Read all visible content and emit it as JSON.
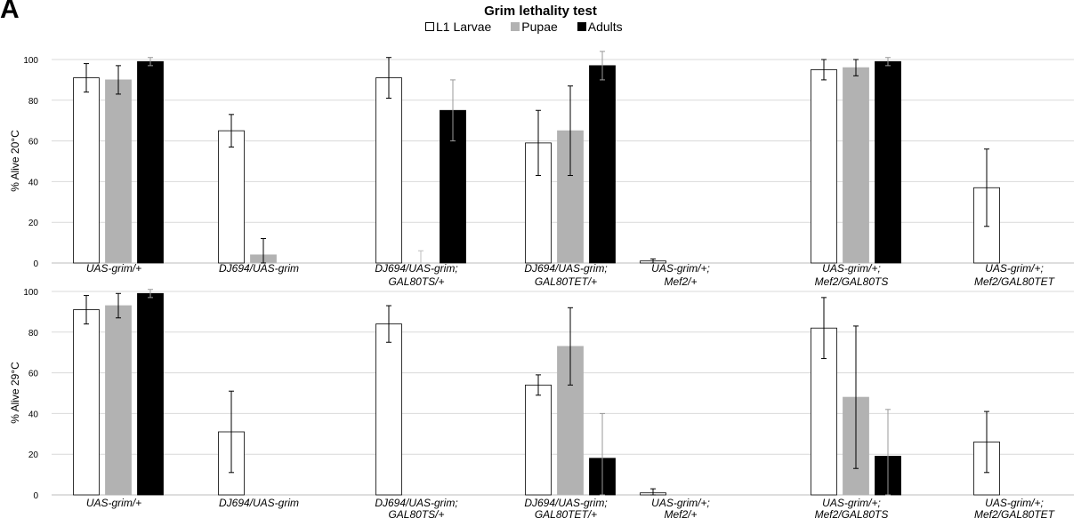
{
  "panel_label": "A",
  "chart_data": [
    {
      "type": "bar",
      "title": "Grim lethality test",
      "ylabel": "% Alive 20°C",
      "ylim": [
        0,
        100
      ],
      "yticks": [
        0,
        20,
        40,
        60,
        80,
        100
      ],
      "grid": true,
      "legend_position": "top-center",
      "categories": [
        [
          "UAS-grim/+"
        ],
        [
          "DJ694/UAS-grim"
        ],
        [
          "DJ694/UAS-grim;",
          "GAL80TS/+"
        ],
        [
          "DJ694/UAS-grim;",
          "GAL80TET/+"
        ],
        [
          "UAS-grim/+;",
          "Mef2/+"
        ],
        [
          "UAS-grim/+;",
          "Mef2/GAL80TS"
        ],
        [
          "UAS-grim/+;",
          "Mef2/GAL80TET"
        ]
      ],
      "series": [
        {
          "name": "L1 Larvae",
          "color": "#ffffff",
          "values": [
            91,
            65,
            91,
            59,
            1,
            95,
            37
          ],
          "errors": [
            7,
            8,
            10,
            16,
            1,
            5,
            19
          ]
        },
        {
          "name": "Pupae",
          "color": "#b2b2b2",
          "values": [
            90,
            4,
            null,
            65,
            null,
            96,
            null
          ],
          "errors": [
            7,
            8,
            6,
            22,
            null,
            4,
            null
          ]
        },
        {
          "name": "Adults",
          "color": "#000000",
          "values": [
            99,
            null,
            75,
            97,
            null,
            99,
            null
          ],
          "errors": [
            2,
            null,
            15,
            7,
            null,
            2,
            null
          ]
        }
      ]
    },
    {
      "type": "bar",
      "ylabel": "% Alive 29°C",
      "ylim": [
        0,
        100
      ],
      "yticks": [
        0,
        20,
        40,
        60,
        80,
        100
      ],
      "grid": true,
      "categories": [
        [
          "UAS-grim/+"
        ],
        [
          "DJ694/UAS-grim"
        ],
        [
          "DJ694/UAS-grim;",
          "GAL80TS/+"
        ],
        [
          "DJ694/UAS-grim;",
          "GAL80TET/+"
        ],
        [
          "UAS-grim/+;",
          "Mef2/+"
        ],
        [
          "UAS-grim/+;",
          "Mef2/GAL80TS"
        ],
        [
          "UAS-grim/+;",
          "Mef2/GAL80TET"
        ]
      ],
      "series": [
        {
          "name": "L1 Larvae",
          "color": "#ffffff",
          "values": [
            91,
            31,
            84,
            54,
            1,
            82,
            26
          ],
          "errors": [
            7,
            20,
            9,
            5,
            2,
            15,
            15
          ]
        },
        {
          "name": "Pupae",
          "color": "#b2b2b2",
          "values": [
            93,
            null,
            null,
            73,
            null,
            48,
            null
          ],
          "errors": [
            6,
            null,
            null,
            19,
            null,
            35,
            null
          ]
        },
        {
          "name": "Adults",
          "color": "#000000",
          "values": [
            99,
            null,
            null,
            18,
            null,
            19,
            null
          ],
          "errors": [
            2,
            null,
            null,
            22,
            null,
            23,
            null
          ]
        }
      ]
    }
  ]
}
